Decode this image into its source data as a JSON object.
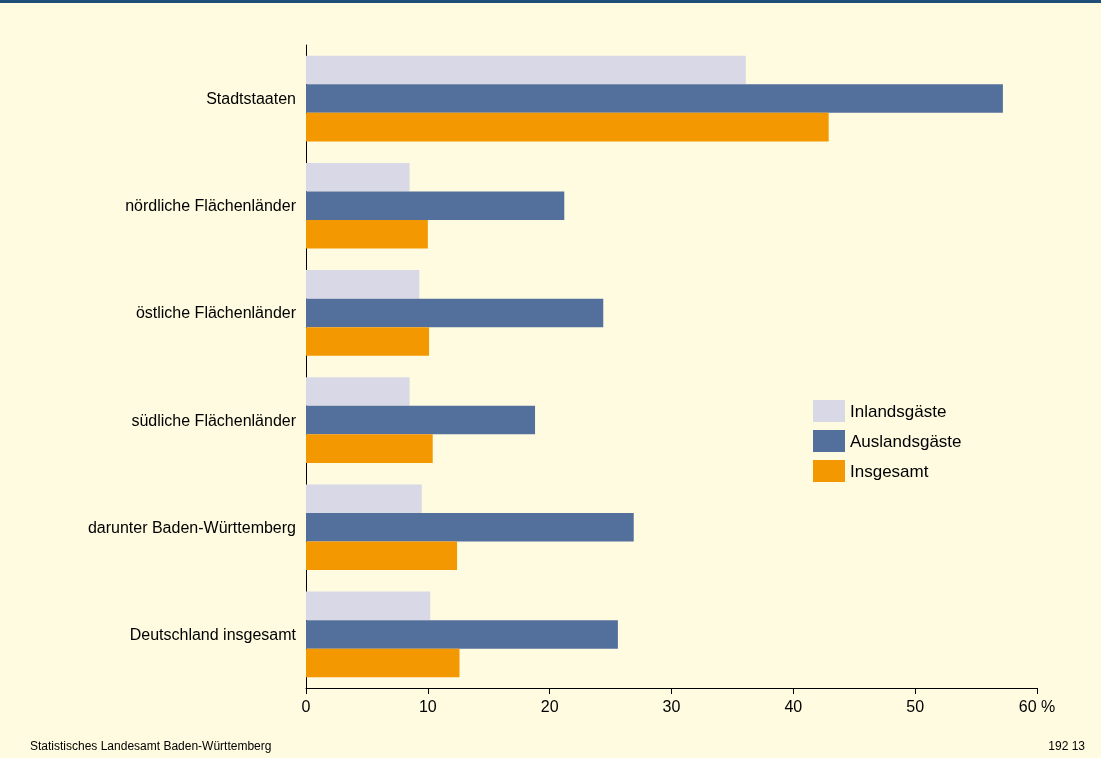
{
  "chart_data": {
    "type": "bar",
    "orientation": "horizontal",
    "categories": [
      "Stadtstaaten",
      "nördliche Flächenländer",
      "östliche Flächenländer",
      "südliche Flächenländer",
      "darunter Baden-Württemberg",
      "Deutschland insgesamt"
    ],
    "series": [
      {
        "name": "Inlandsgäste",
        "color": "#d8d8e6",
        "values": [
          36.1,
          8.5,
          9.3,
          8.5,
          9.5,
          10.2
        ]
      },
      {
        "name": "Auslandsgäste",
        "color": "#536f9c",
        "values": [
          57.2,
          21.2,
          24.4,
          18.8,
          26.9,
          25.6
        ]
      },
      {
        "name": "Insgesamt",
        "color": "#f39800",
        "values": [
          42.9,
          10.0,
          10.1,
          10.4,
          12.4,
          12.6
        ]
      }
    ],
    "xlim": [
      0,
      60
    ],
    "xticks": [
      0,
      10,
      20,
      30,
      40,
      50,
      {
        "value": 60,
        "label": "60 %"
      }
    ],
    "grid": false,
    "legend": "right",
    "annotations": [
      "Statistisches Landesamt Baden-Württemberg",
      "192 13"
    ]
  }
}
